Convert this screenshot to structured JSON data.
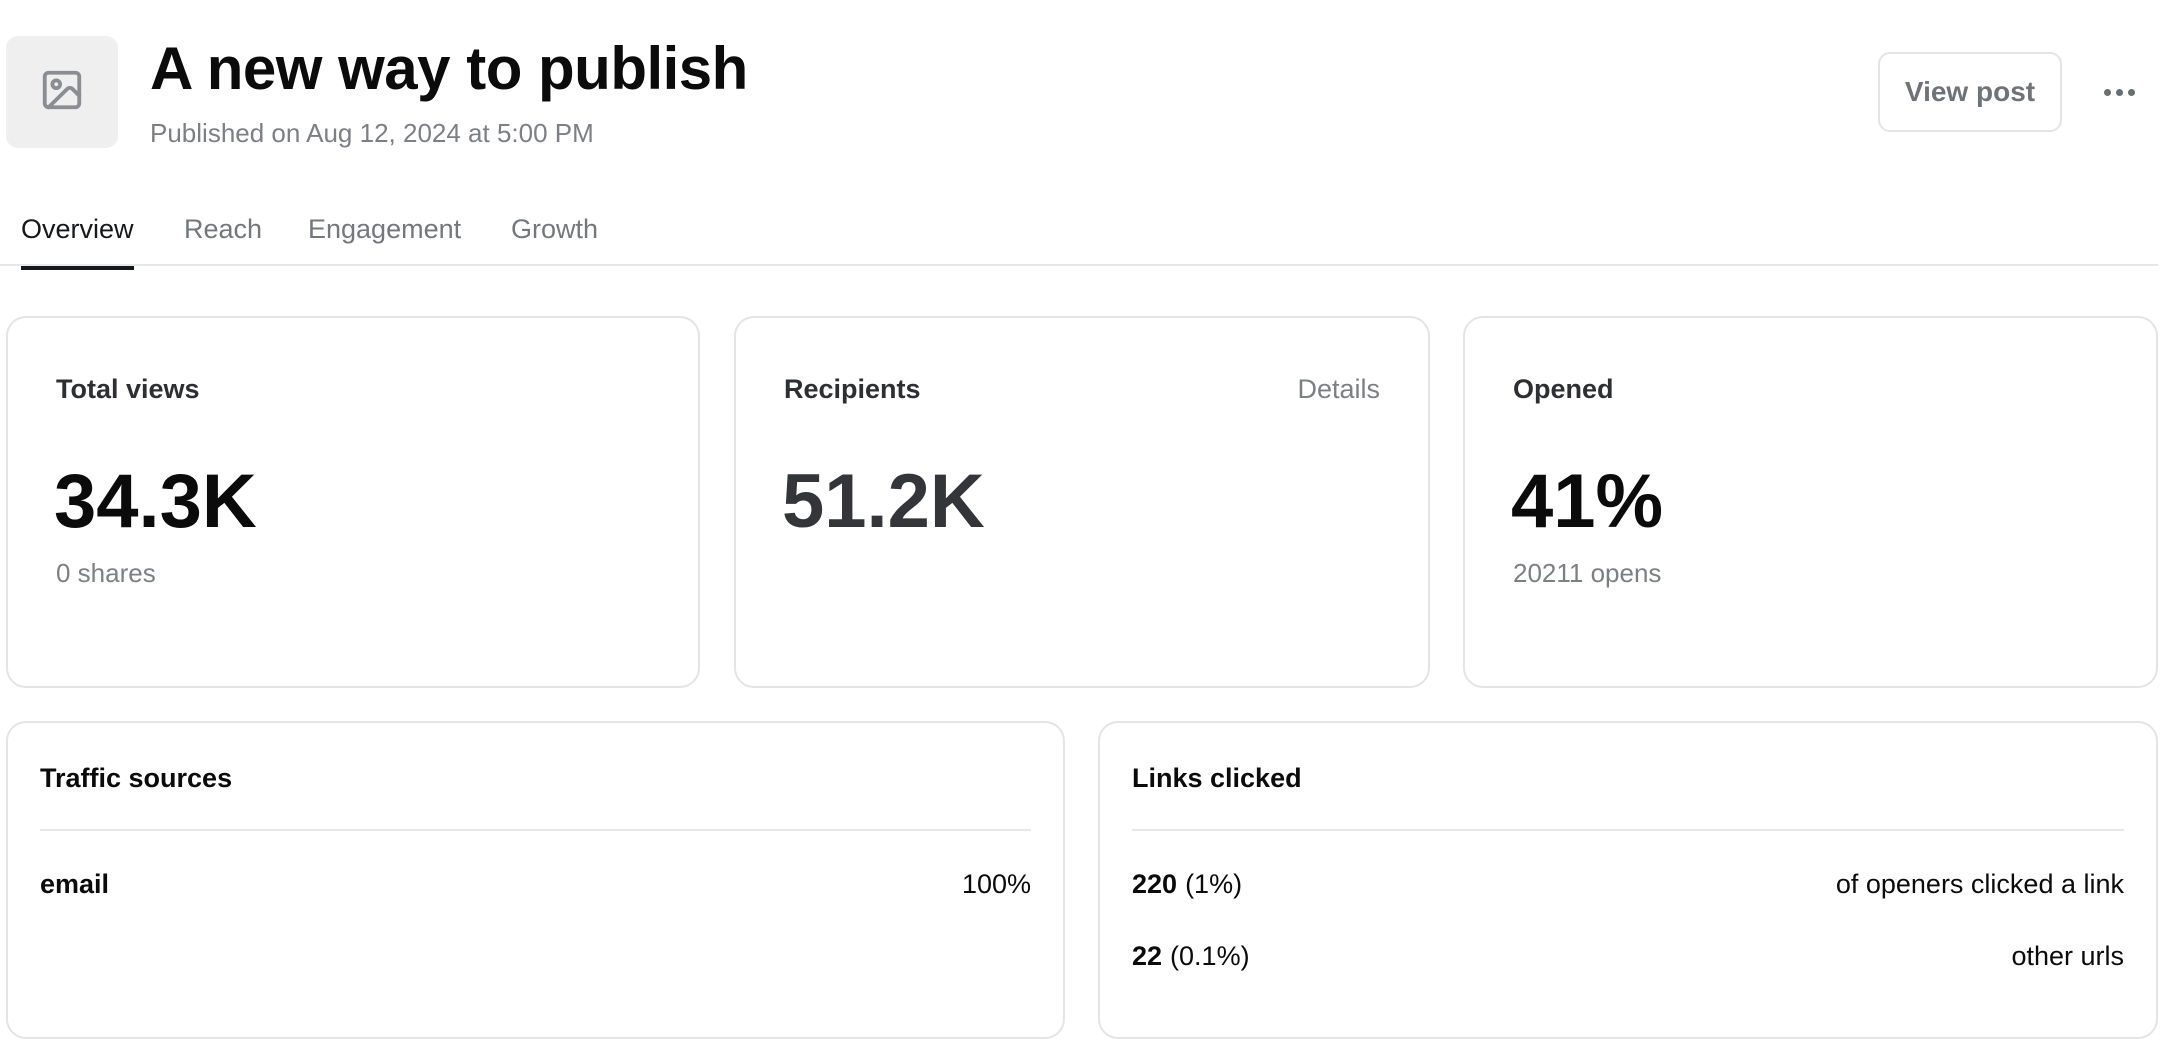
{
  "header": {
    "thumbnail_icon": "image-icon",
    "title": "A new way to publish",
    "subtitle": "Published on Aug 12, 2024 at 5:00 PM",
    "view_post_label": "View post",
    "more_icon": "more-horizontal-icon"
  },
  "tabs": [
    {
      "label": "Overview",
      "active": true
    },
    {
      "label": "Reach",
      "active": false
    },
    {
      "label": "Engagement",
      "active": false
    },
    {
      "label": "Growth",
      "active": false
    }
  ],
  "stats": {
    "total_views": {
      "label": "Total views",
      "value": "34.3K",
      "sub": "0 shares"
    },
    "recipients": {
      "label": "Recipients",
      "link": "Details",
      "value": "51.2K"
    },
    "opened": {
      "label": "Opened",
      "value": "41%",
      "sub": "20211 opens"
    }
  },
  "traffic_sources": {
    "title": "Traffic sources",
    "rows": [
      {
        "name": "email",
        "value": "100%"
      }
    ]
  },
  "links_clicked": {
    "title": "Links clicked",
    "rows": [
      {
        "count": "220",
        "pct": "(1%)",
        "label": "of openers clicked a link"
      },
      {
        "count": "22",
        "pct": "(0.1%)",
        "label": "other urls"
      }
    ]
  }
}
